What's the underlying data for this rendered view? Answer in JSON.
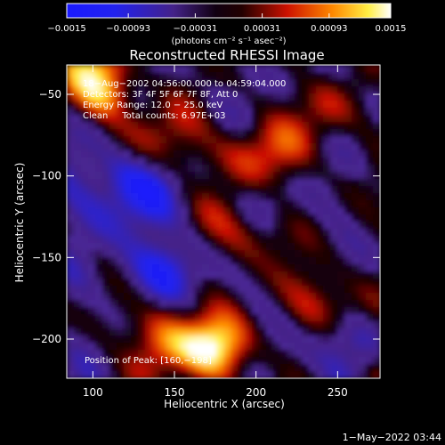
{
  "chart_data": {
    "type": "heatmap",
    "title": "Reconstructed RHESSI Image",
    "xlabel": "Heliocentric X (arcsec)",
    "ylabel": "Heliocentric Y (arcsec)",
    "xlim": [
      84,
      276
    ],
    "ylim": [
      -224,
      -32
    ],
    "x_ticks": [
      100,
      150,
      200,
      250
    ],
    "y_ticks": [
      -50,
      -100,
      -150,
      -200
    ],
    "x_tick_labels": [
      "100",
      "150",
      "200",
      "250"
    ],
    "y_tick_labels": [
      "−50",
      "−100",
      "−150",
      "−200"
    ],
    "colorbar": {
      "min": -0.0015,
      "max": 0.0015,
      "ticks": [
        -0.0015,
        -0.00093,
        -0.00031,
        0.00031,
        0.00093,
        0.0015
      ],
      "tick_labels": [
        "−0.0015",
        "−0.00093",
        "−0.00031",
        "0.00031",
        "0.00093",
        "0.0015"
      ],
      "units_label": "(photons cm⁻² s⁻¹ asec⁻²)",
      "colormap": "rhessi: blue-purple-black-red-orange-yellow-white"
    },
    "annotations": [
      "18−Aug−2002 04:56:00.000 to 04:59:04.000",
      "Detectors: 3F 4F 5F 6F 7F 8F, Att 0",
      "Energy Range: 12.0 − 25.0 keV",
      "Clean     Total counts: 6.97E+03"
    ],
    "footnote": "Position of Peak: [160,−198]",
    "timestamp": "1−May−2022 03:44",
    "grid": false
  }
}
